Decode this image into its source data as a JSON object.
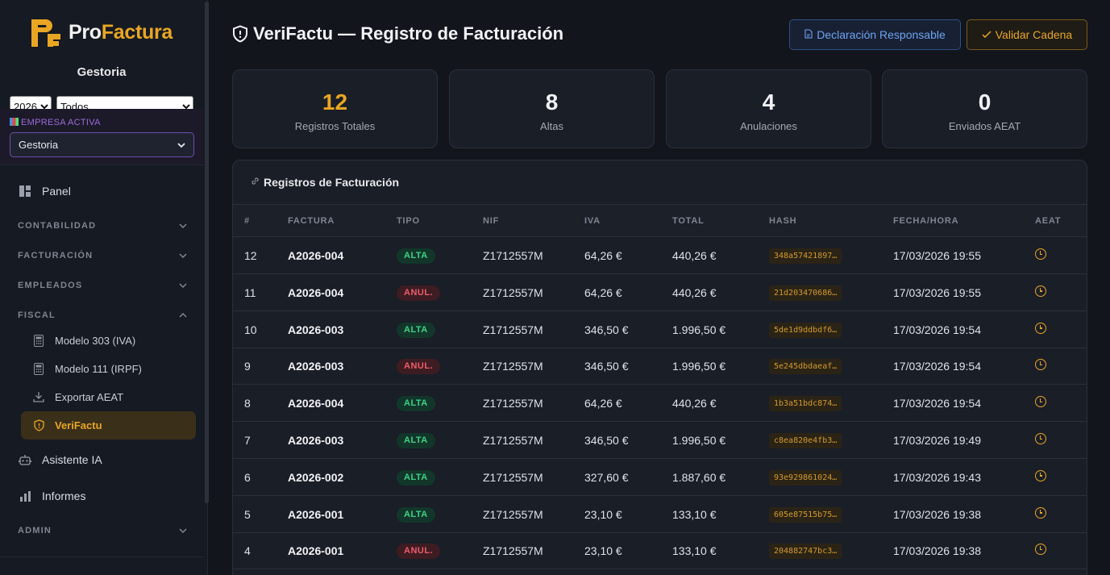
{
  "sidebar": {
    "logo": {
      "pro": "Pro",
      "factura": "Factura"
    },
    "org_name": "Gestoria",
    "filters": {
      "year": "2026",
      "type": "Todos"
    },
    "empresa": {
      "label": "EMPRESA ACTIVA",
      "selected": "Gestoria"
    },
    "nav": {
      "panel": "Panel",
      "contabilidad": "CONTABILIDAD",
      "facturacion": "FACTURACIÓN",
      "empleados": "EMPLEADOS",
      "fiscal": "FISCAL",
      "fiscal_items": [
        "Modelo 303 (IVA)",
        "Modelo 111 (IRPF)",
        "Exportar AEAT",
        "VeriFactu"
      ],
      "asistente": "Asistente IA",
      "informes": "Informes",
      "admin": "ADMIN"
    }
  },
  "header": {
    "title": "VeriFactu — Registro de Facturación",
    "btn_declaracion": "Declaración Responsable",
    "btn_validar": "Validar Cadena"
  },
  "stats": [
    {
      "value": "12",
      "label": "Registros Totales"
    },
    {
      "value": "8",
      "label": "Altas"
    },
    {
      "value": "4",
      "label": "Anulaciones"
    },
    {
      "value": "0",
      "label": "Enviados AEAT"
    }
  ],
  "table": {
    "title": "Registros de Facturación",
    "headers": [
      "#",
      "FACTURA",
      "TIPO",
      "NIF",
      "IVA",
      "TOTAL",
      "HASH",
      "FECHA/HORA",
      "AEAT"
    ],
    "rows": [
      {
        "n": "12",
        "factura": "A2026-004",
        "tipo": "ALTA",
        "nif": "Z1712557M",
        "iva": "64,26 €",
        "total": "440,26 €",
        "hash": "348a57421897…",
        "fecha": "17/03/2026 19:55"
      },
      {
        "n": "11",
        "factura": "A2026-004",
        "tipo": "ANUL.",
        "nif": "Z1712557M",
        "iva": "64,26 €",
        "total": "440,26 €",
        "hash": "21d203470686…",
        "fecha": "17/03/2026 19:55"
      },
      {
        "n": "10",
        "factura": "A2026-003",
        "tipo": "ALTA",
        "nif": "Z1712557M",
        "iva": "346,50 €",
        "total": "1.996,50 €",
        "hash": "5de1d9ddbdf6…",
        "fecha": "17/03/2026 19:54"
      },
      {
        "n": "9",
        "factura": "A2026-003",
        "tipo": "ANUL.",
        "nif": "Z1712557M",
        "iva": "346,50 €",
        "total": "1.996,50 €",
        "hash": "5e245dbdaeaf…",
        "fecha": "17/03/2026 19:54"
      },
      {
        "n": "8",
        "factura": "A2026-004",
        "tipo": "ALTA",
        "nif": "Z1712557M",
        "iva": "64,26 €",
        "total": "440,26 €",
        "hash": "1b3a51bdc874…",
        "fecha": "17/03/2026 19:54"
      },
      {
        "n": "7",
        "factura": "A2026-003",
        "tipo": "ALTA",
        "nif": "Z1712557M",
        "iva": "346,50 €",
        "total": "1.996,50 €",
        "hash": "c8ea820e4fb3…",
        "fecha": "17/03/2026 19:49"
      },
      {
        "n": "6",
        "factura": "A2026-002",
        "tipo": "ALTA",
        "nif": "Z1712557M",
        "iva": "327,60 €",
        "total": "1.887,60 €",
        "hash": "93e929861024…",
        "fecha": "17/03/2026 19:43"
      },
      {
        "n": "5",
        "factura": "A2026-001",
        "tipo": "ALTA",
        "nif": "Z1712557M",
        "iva": "23,10 €",
        "total": "133,10 €",
        "hash": "605e87515b75…",
        "fecha": "17/03/2026 19:38"
      },
      {
        "n": "4",
        "factura": "A2026-001",
        "tipo": "ANUL.",
        "nif": "Z1712557M",
        "iva": "23,10 €",
        "total": "133,10 €",
        "hash": "204882747bc3…",
        "fecha": "17/03/2026 19:38"
      }
    ]
  },
  "colors": {
    "accent": "#e9a623",
    "alta": "#3fd08a",
    "anul": "#ee5d6c",
    "link": "#6ea4f2"
  }
}
